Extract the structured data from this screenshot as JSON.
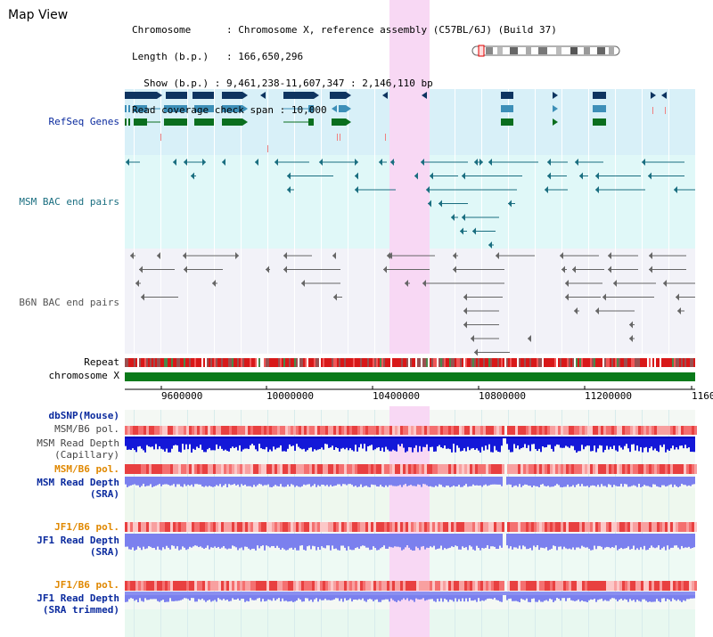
{
  "title": "Map View",
  "info": {
    "chromosome_label": "Chromosome",
    "chromosome_value": "Chromosome X, reference assembly (C57BL/6J) (Build 37)",
    "length_label": "Length (b.p.)",
    "length_value": "166,650,296",
    "show_label": "Show (b.p.)",
    "show_value": "9,461,238-11,607,347 : 2,146,110 bp",
    "coverage_label": "Read coverage check span",
    "coverage_value": "10,000"
  },
  "tracks": {
    "refseq": "RefSeq Genes",
    "msm_bac": "MSM BAC end pairs",
    "b6n_bac": "B6N BAC end pairs",
    "repeat": "Repeat",
    "chromosome": "chromosome X",
    "dbsnp": "dbSNP(Mouse)",
    "msm_pol_1": "MSM/B6 pol.",
    "msm_depth_cap_1": "MSM Read Depth",
    "msm_depth_cap_2": "(Capillary)",
    "msm_pol_2": "MSM/B6 pol.",
    "msm_depth_sra_1": "MSM Read Depth",
    "msm_depth_sra_2": "(SRA)",
    "jf1_pol_1": "JF1/B6 pol.",
    "jf1_depth_1": "JF1 Read Depth",
    "jf1_depth_2": "(SRA)",
    "jf1_pol_2": "JF1/B6 pol.",
    "jf1_trim_1": "JF1 Read Depth",
    "jf1_trim_2": "(SRA trimmed)"
  },
  "axis": {
    "ticks": [
      "9600000",
      "10000000",
      "10400000",
      "10800000",
      "11200000",
      "1160"
    ]
  },
  "colors": {
    "highlight": "#f8d8f4",
    "refseq_band": "#d8f0f8",
    "msm_band": "#e0f8f8",
    "b6n_band": "#f2f2f8",
    "gene_navy": "#0e3460",
    "gene_blue": "#3d8fb8",
    "gene_green": "#0a6e1e",
    "msm_pair": "#1a6e80",
    "b6n_pair": "#666666",
    "depth_dark": "#1418d8",
    "depth_light": "#7b80ee",
    "pol_red": "#f06060"
  }
}
